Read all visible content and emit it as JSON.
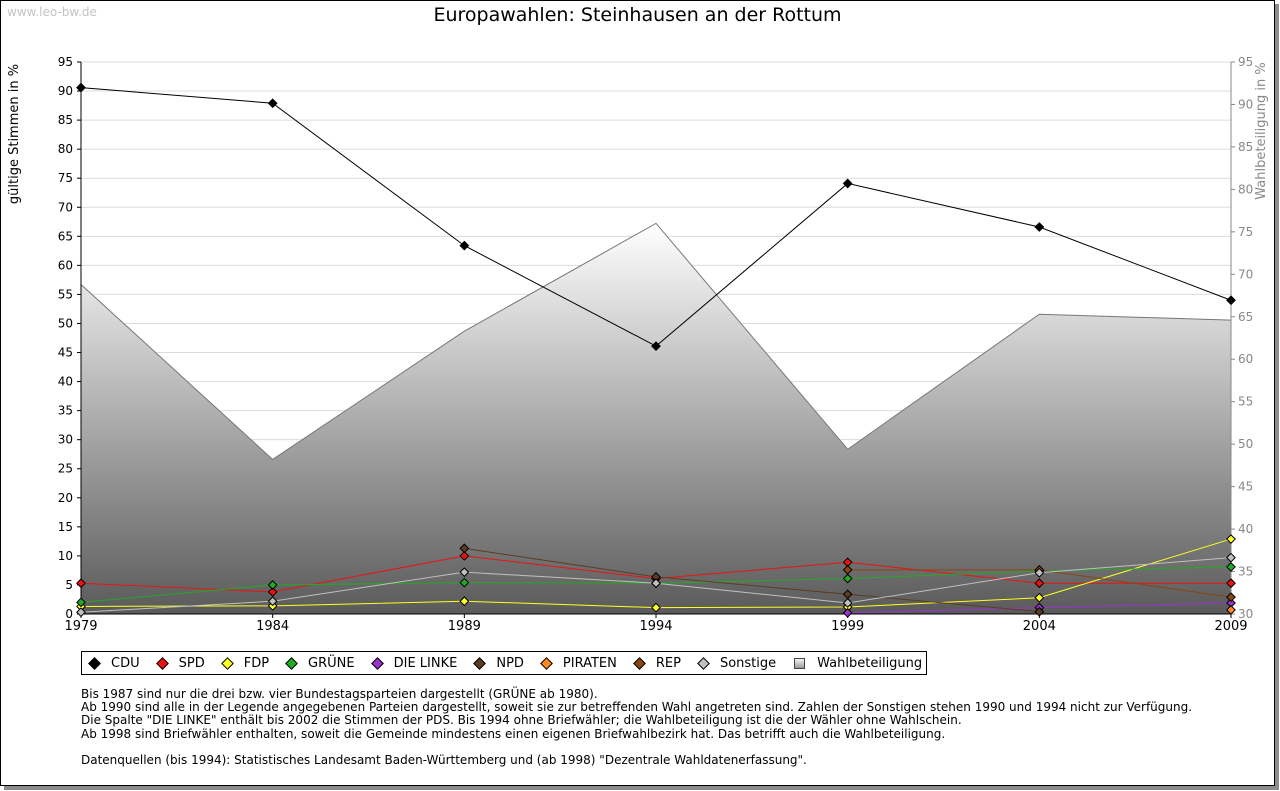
{
  "watermark": "www.leo-bw.de",
  "chart_data": {
    "type": "line",
    "title": "Europawahlen: Steinhausen an der Rottum",
    "ylabel": "gültige Stimmen in %",
    "y2label": "Wahlbeteiligung in %",
    "ylim": [
      0,
      95
    ],
    "y2lim": [
      30,
      95
    ],
    "yticks": [
      "0",
      "5",
      "10",
      "15",
      "20",
      "25",
      "30",
      "35",
      "40",
      "45",
      "50",
      "55",
      "60",
      "65",
      "70",
      "75",
      "80",
      "85",
      "90",
      "95"
    ],
    "y2ticks": [
      "30",
      "35",
      "40",
      "45",
      "50",
      "55",
      "60",
      "65",
      "70",
      "75",
      "80",
      "85",
      "90",
      "95"
    ],
    "x": [
      "1979",
      "1984",
      "1989",
      "1994",
      "1999",
      "2004",
      "2009"
    ],
    "area": {
      "name": "Wahlbeteiligung",
      "values": [
        68.8,
        48.2,
        63.3,
        76.0,
        49.4,
        65.3,
        64.6
      ]
    },
    "series": [
      {
        "name": "CDU",
        "color": "#000000",
        "values": [
          90.6,
          87.9,
          63.4,
          46.1,
          74.1,
          66.6,
          54.0
        ]
      },
      {
        "name": "SPD",
        "color": "#ee1111",
        "values": [
          5.3,
          3.8,
          10.0,
          6.1,
          8.9,
          5.3,
          5.3
        ]
      },
      {
        "name": "FDP",
        "color": "#ffff22",
        "values": [
          1.3,
          1.4,
          2.2,
          1.1,
          1.2,
          2.8,
          12.9
        ]
      },
      {
        "name": "GRÜNE",
        "color": "#22aa22",
        "values": [
          2.0,
          5.0,
          5.4,
          5.3,
          6.1,
          7.4,
          8.1
        ]
      },
      {
        "name": "DIE LINKE",
        "color": "#9933cc",
        "values": [
          null,
          null,
          null,
          null,
          0.2,
          1.1,
          1.9
        ]
      },
      {
        "name": "NPD",
        "color": "#5c3c22",
        "values": [
          null,
          null,
          11.3,
          6.4,
          3.4,
          0.4,
          null
        ]
      },
      {
        "name": "PIRATEN",
        "color": "#ff8822",
        "values": [
          null,
          null,
          null,
          null,
          null,
          null,
          0.7
        ]
      },
      {
        "name": "REP",
        "color": "#8b4513",
        "values": [
          null,
          null,
          null,
          null,
          7.6,
          7.6,
          2.9
        ]
      },
      {
        "name": "Sonstige",
        "color": "#c0c0c0",
        "values": [
          0.3,
          2.2,
          7.2,
          5.3,
          1.9,
          7.1,
          9.7
        ]
      }
    ]
  },
  "legend": {
    "items": [
      {
        "label": "CDU",
        "color": "#000000"
      },
      {
        "label": "SPD",
        "color": "#ee1111"
      },
      {
        "label": "FDP",
        "color": "#ffff22"
      },
      {
        "label": "GRÜNE",
        "color": "#22aa22"
      },
      {
        "label": "DIE LINKE",
        "color": "#9933cc"
      },
      {
        "label": "NPD",
        "color": "#5c3c22"
      },
      {
        "label": "PIRATEN",
        "color": "#ff8822"
      },
      {
        "label": "REP",
        "color": "#8b4513"
      },
      {
        "label": "Sonstige",
        "color": "#c0c0c0"
      }
    ],
    "area_label": "Wahlbeteiligung"
  },
  "notes": {
    "line1": "Bis 1987 sind nur die drei bzw. vier Bundestagsparteien dargestellt (GRÜNE ab 1980).",
    "line2": "Ab 1990 sind alle in der Legende angegebenen Parteien dargestellt, soweit sie zur betreffenden Wahl angetreten sind. Zahlen der Sonstigen stehen 1990 und 1994 nicht zur Verfügung.",
    "line3": "Die Spalte \"DIE LINKE\" enthält bis 2002 die Stimmen der PDS. Bis 1994 ohne Briefwähler; die Wahlbeteiligung ist die der Wähler ohne Wahlschein.",
    "line4": "Ab 1998 sind Briefwähler enthalten, soweit die Gemeinde mindestens einen eigenen Briefwahlbezirk hat. Das betrifft auch die Wahlbeteiligung.",
    "sources": "Datenquellen (bis 1994): Statistisches Landesamt Baden-Württemberg und (ab 1998) \"Dezentrale Wahldatenerfassung\"."
  }
}
